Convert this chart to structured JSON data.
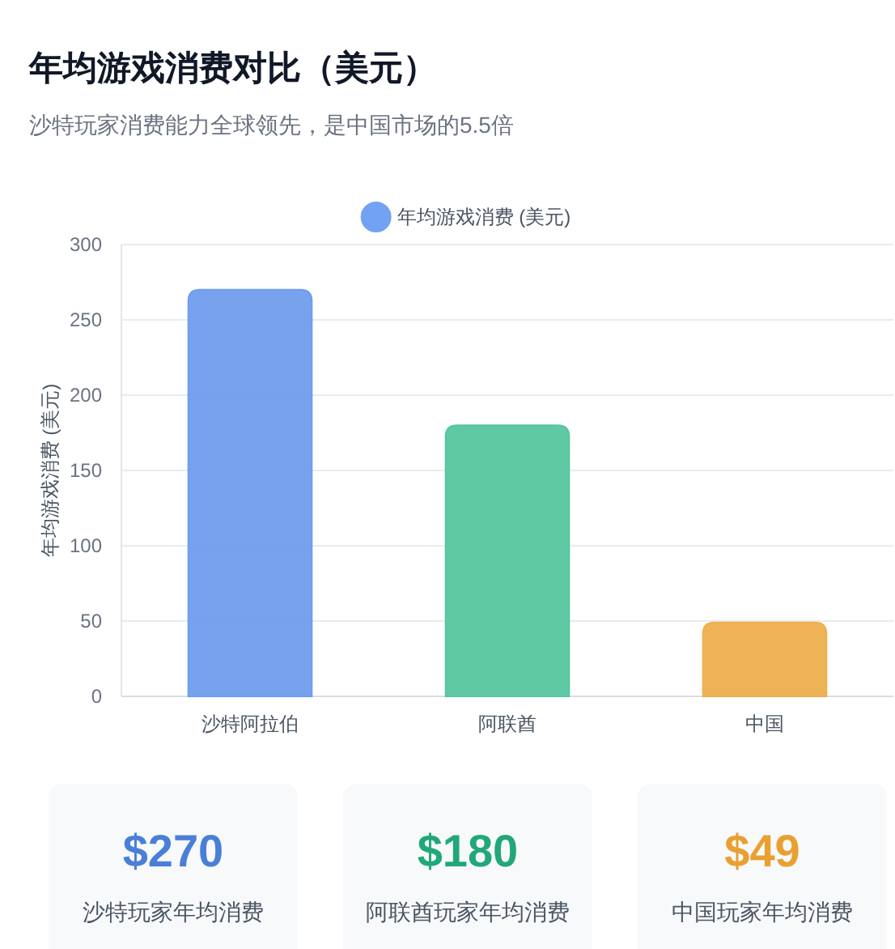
{
  "chart_data": [
    {
      "type": "bar",
      "title": "年均游戏消费对比（美元）",
      "subtitle": "沙特玩家消费能力全球领先，是中国市场的5.5倍",
      "ylabel": "年均游戏消费 (美元)",
      "categories": [
        "沙特阿拉伯",
        "阿联酋",
        "中国"
      ],
      "series": [
        {
          "name": "年均游戏消费 (美元)",
          "colors": [
            "#72a2f4",
            "#59cca3",
            "#f5b450"
          ],
          "values": [
            270,
            180,
            49
          ]
        }
      ],
      "ylim": [
        0,
        300
      ],
      "yticks": [
        0,
        50,
        100,
        150,
        200,
        250,
        300
      ],
      "grid": "y",
      "legend": "top"
    },
    {
      "type": "other",
      "annotations": [
        "$270",
        "沙特玩家年均消费",
        "$180",
        "阿联酋玩家年均消费",
        "$49",
        "中国玩家年均消费"
      ],
      "colors": [
        "#4a7fd8",
        "#22a878",
        "#e9a030"
      ]
    }
  ]
}
